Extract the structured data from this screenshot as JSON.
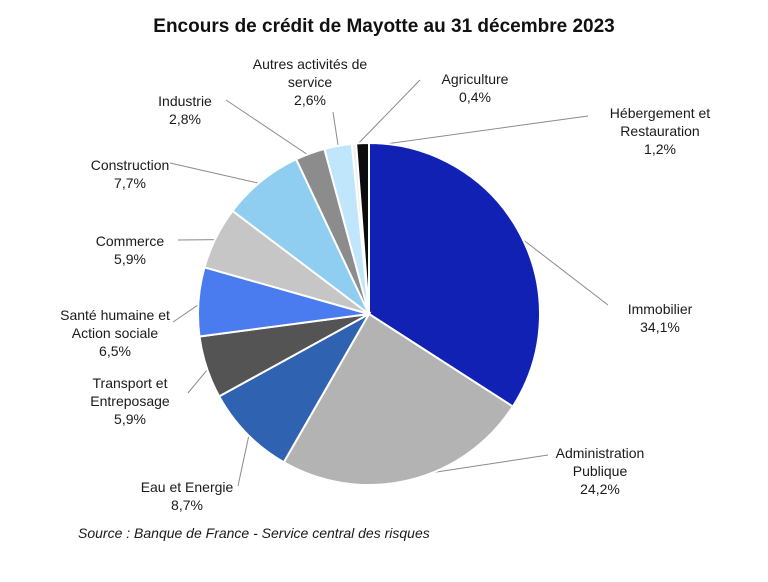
{
  "chart_data": {
    "type": "pie",
    "title": "Encours de crédit de Mayotte au 31 décembre 2023",
    "slices": [
      {
        "name": "Immobilier",
        "value": 34.1,
        "value_label": "34,1%",
        "color": "#1021b4"
      },
      {
        "name": "Administration Publique",
        "value": 24.2,
        "value_label": "24,2%",
        "color": "#b3b3b3"
      },
      {
        "name": "Eau et Energie",
        "value": 8.7,
        "value_label": "8,7%",
        "color": "#2f62b0"
      },
      {
        "name": "Transport et Entreposage",
        "value": 5.9,
        "value_label": "5,9%",
        "color": "#545454"
      },
      {
        "name": "Santé humaine et Action sociale",
        "value": 6.5,
        "value_label": "6,5%",
        "color": "#4a7cf0"
      },
      {
        "name": "Commerce",
        "value": 5.9,
        "value_label": "5,9%",
        "color": "#c6c6c6"
      },
      {
        "name": "Construction",
        "value": 7.7,
        "value_label": "7,7%",
        "color": "#8fcef0"
      },
      {
        "name": "Industrie",
        "value": 2.8,
        "value_label": "2,8%",
        "color": "#8c8c8c"
      },
      {
        "name": "Autres activités de service",
        "value": 2.6,
        "value_label": "2,6%",
        "color": "#bfe6fb"
      },
      {
        "name": "Agriculture",
        "value": 0.4,
        "value_label": "0,4%",
        "color": "#eeeeee"
      },
      {
        "name": "Hébergement et Restauration",
        "value": 1.2,
        "value_label": "1,2%",
        "color": "#0c0c0c"
      }
    ],
    "source": "Source : Banque de France - Service central des risques"
  },
  "labels": [
    {
      "lines": [
        "Immobilier",
        "34,1%"
      ]
    },
    {
      "lines": [
        "Administration",
        "Publique",
        "24,2%"
      ]
    },
    {
      "lines": [
        "Eau et Energie",
        "8,7%"
      ]
    },
    {
      "lines": [
        "Transport et",
        "Entreposage",
        "5,9%"
      ]
    },
    {
      "lines": [
        "Santé humaine et",
        "Action sociale",
        "6,5%"
      ]
    },
    {
      "lines": [
        "Commerce",
        "5,9%"
      ]
    },
    {
      "lines": [
        "Construction",
        "7,7%"
      ]
    },
    {
      "lines": [
        "Industrie",
        "2,8%"
      ]
    },
    {
      "lines": [
        "Autres activités de",
        "service",
        "2,6%"
      ]
    },
    {
      "lines": [
        "Agriculture",
        "0,4%"
      ]
    },
    {
      "lines": [
        "Hébergement et",
        "Restauration",
        "1,2%"
      ]
    }
  ]
}
